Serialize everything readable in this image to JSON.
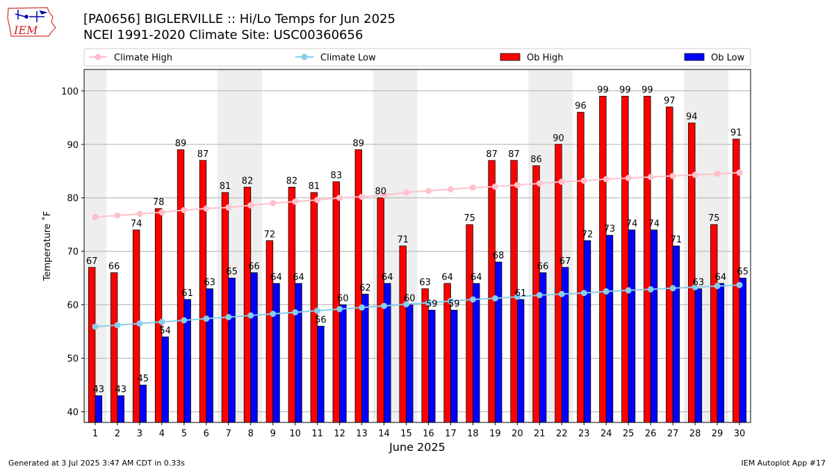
{
  "header": {
    "title_line1": "[PA0656] BIGLERVILLE :: Hi/Lo Temps for Jun 2025",
    "title_line2": "NCEI 1991-2020 Climate Site: USC00360656"
  },
  "logo": {
    "text": "IEM"
  },
  "footer": {
    "generated": "Generated at 3 Jul 2025 3:47 AM CDT in 0.33s",
    "app": "IEM Autoplot App #17"
  },
  "colors": {
    "ob_high": "#ff0000",
    "ob_low": "#0000ff",
    "climate_high": "#ffc0cb",
    "climate_low": "#87ceeb",
    "weekend_shade": "#eeeeee",
    "grid": "#b0b0b0"
  },
  "chart_data": {
    "type": "bar",
    "xlabel": "June 2025",
    "ylabel": "Temperature ˚F",
    "ylim": [
      38,
      104
    ],
    "yticks": [
      40,
      50,
      60,
      70,
      80,
      90,
      100
    ],
    "grid": "horizontal",
    "legend_position": "top",
    "categories": [
      1,
      2,
      3,
      4,
      5,
      6,
      7,
      8,
      9,
      10,
      11,
      12,
      13,
      14,
      15,
      16,
      17,
      18,
      19,
      20,
      21,
      22,
      23,
      24,
      25,
      26,
      27,
      28,
      29,
      30
    ],
    "shaded_days": [
      1,
      7,
      8,
      14,
      15,
      21,
      22,
      28,
      29
    ],
    "series": [
      {
        "name": "Ob High",
        "type": "bar",
        "values": [
          67,
          66,
          74,
          78,
          89,
          87,
          81,
          82,
          72,
          82,
          81,
          83,
          89,
          80,
          71,
          63,
          64,
          75,
          87,
          87,
          86,
          90,
          96,
          99,
          99,
          99,
          97,
          94,
          75,
          91
        ]
      },
      {
        "name": "Ob Low",
        "type": "bar",
        "values": [
          43,
          43,
          45,
          54,
          61,
          63,
          65,
          66,
          64,
          64,
          56,
          60,
          62,
          64,
          60,
          59,
          59,
          64,
          68,
          61,
          66,
          67,
          72,
          73,
          74,
          74,
          71,
          63,
          64,
          65
        ]
      },
      {
        "name": "Climate High",
        "type": "line",
        "values": [
          76.4,
          76.7,
          77.0,
          77.3,
          77.7,
          78.0,
          78.2,
          78.6,
          79.0,
          79.3,
          79.6,
          80.0,
          80.2,
          80.5,
          81.0,
          81.3,
          81.6,
          81.9,
          82.1,
          82.4,
          82.7,
          83.0,
          83.2,
          83.5,
          83.7,
          83.9,
          84.1,
          84.3,
          84.5,
          84.7
        ]
      },
      {
        "name": "Climate Low",
        "type": "line",
        "values": [
          55.9,
          56.2,
          56.5,
          56.8,
          57.1,
          57.4,
          57.7,
          58.0,
          58.3,
          58.6,
          58.9,
          59.2,
          59.5,
          59.8,
          60.1,
          60.4,
          60.7,
          61.0,
          61.2,
          61.5,
          61.8,
          62.0,
          62.2,
          62.5,
          62.7,
          62.9,
          63.1,
          63.3,
          63.5,
          63.7
        ]
      }
    ]
  }
}
